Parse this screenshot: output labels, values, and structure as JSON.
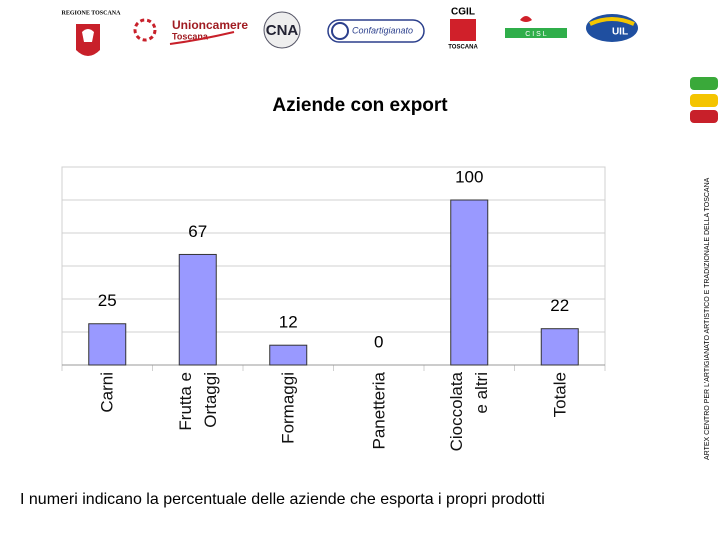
{
  "logos": {
    "regione": "REGIONE TOSCANA",
    "unioncamere": "Unioncamere",
    "unioncamere_sub": "Toscana",
    "cna": "CNA",
    "confartigianato": "Confartigianato",
    "cgil": "CGIL",
    "cgil_sub": "TOSCANA",
    "cisl": "C I S L",
    "uil": "UIL"
  },
  "side_text": "ARTEX CENTRO PER L'ARTIGIANATO ARTISTICO E TRADIZIONALE DELLA TOSCANA",
  "footnote": "I numeri indicano la percentuale delle aziende che esporta i propri prodotti",
  "chart_data": {
    "type": "bar",
    "title": "Aziende con export",
    "categories": [
      "Carni",
      "Frutta e Ortaggi",
      "Formaggi",
      "Panetteria",
      "Cioccolata e altri",
      "Totale"
    ],
    "values": [
      25,
      67,
      12,
      0,
      100,
      22
    ],
    "color": "#9999ff",
    "ylim": [
      0,
      120
    ],
    "yticks": [
      0,
      20,
      40,
      60,
      80,
      100,
      120
    ],
    "grid": true
  }
}
